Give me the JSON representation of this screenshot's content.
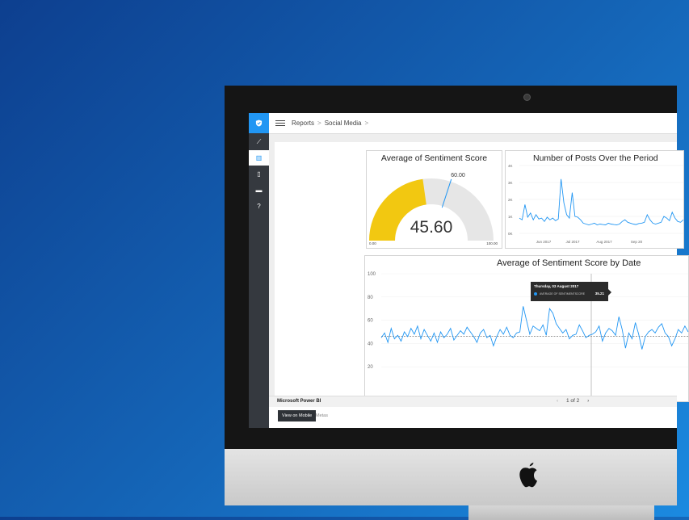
{
  "breadcrumb": {
    "reports": "Reports",
    "sep": ">",
    "current": "Social Media",
    "trail": ">"
  },
  "sidebar": {
    "items": [
      {
        "icon": "line-chart-icon",
        "glyph": "⟋",
        "active": false
      },
      {
        "icon": "bar-chart-icon",
        "glyph": "▥",
        "active": true
      },
      {
        "icon": "mobile-icon",
        "glyph": "▯",
        "active": false
      },
      {
        "icon": "book-icon",
        "glyph": "▬",
        "active": false
      },
      {
        "icon": "help-icon",
        "glyph": "?",
        "active": false
      }
    ]
  },
  "gauge": {
    "title": "Average of Sentiment Score",
    "value": 45.6,
    "value_label": "45.60",
    "target": 60.0,
    "target_label": "60.00",
    "min_label": "0.00",
    "max_label": "100.00",
    "fill_color": "#f2c811",
    "track_color": "#e6e6e6",
    "target_color": "#2196f3"
  },
  "posts_chart": {
    "title": "Number of Posts Over the Period",
    "y_ticks": [
      "4K",
      "3K",
      "2K",
      "1K",
      "0K"
    ],
    "x_ticks": [
      "Jun 2017",
      "Jul 2017",
      "Aug 2017",
      "Sep 20"
    ],
    "chart_data": {
      "type": "line",
      "title": "Number of Posts Over the Period",
      "ylim": [
        0,
        4000
      ],
      "values": [
        900,
        800,
        1700,
        950,
        1200,
        800,
        1100,
        850,
        900,
        700,
        950,
        800,
        900,
        750,
        850,
        3200,
        1800,
        1100,
        900,
        2400,
        1000,
        950,
        800,
        600,
        550,
        500,
        550,
        600,
        500,
        550,
        520,
        500,
        600,
        550,
        520,
        500,
        550,
        700,
        800,
        650,
        600,
        550,
        520,
        580,
        600,
        650,
        1100,
        800,
        600,
        550,
        600,
        650,
        1000,
        900,
        750,
        1250,
        900,
        700,
        650,
        800
      ]
    }
  },
  "sentiment_chart": {
    "title": "Average of Sentiment Score by Date",
    "y_ticks": [
      "100",
      "80",
      "60",
      "40",
      "20"
    ],
    "reference_value": 46,
    "chart_data": {
      "type": "line",
      "title": "Average of Sentiment Score by Date",
      "ylim": [
        0,
        100
      ],
      "values": [
        45,
        49,
        41,
        53,
        44,
        47,
        42,
        50,
        46,
        53,
        48,
        55,
        44,
        52,
        47,
        42,
        49,
        41,
        50,
        45,
        48,
        53,
        43,
        47,
        51,
        48,
        54,
        50,
        46,
        41,
        49,
        52,
        45,
        47,
        38,
        46,
        52,
        48,
        54,
        47,
        45,
        49,
        50,
        72,
        60,
        48,
        55,
        53,
        51,
        56,
        47,
        70,
        66,
        57,
        53,
        49,
        52,
        44,
        47,
        48,
        56,
        51,
        45,
        47,
        48,
        50,
        55,
        42,
        49,
        53,
        51,
        47,
        63,
        52,
        36,
        49,
        44,
        58,
        48,
        35,
        46,
        50,
        52,
        49,
        54,
        57,
        49,
        46,
        38,
        44,
        52,
        49,
        55,
        50
      ]
    }
  },
  "tooltip": {
    "date": "Thursday, 03 August 2017",
    "series": "AVERAGE OF SENTIMENTSCORE",
    "value": "35.21"
  },
  "footer": {
    "brand": "Microsoft Power BI",
    "pager": "1 of 2",
    "prev": "‹",
    "next": "›"
  },
  "bottom": {
    "mobile_button": "View on Mobile",
    "trailing_text": "Metas"
  }
}
